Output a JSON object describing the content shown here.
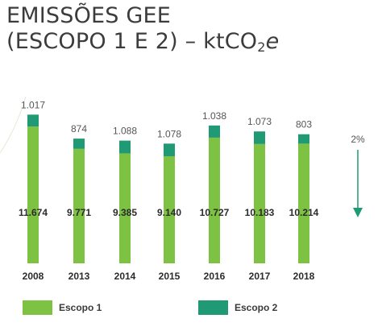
{
  "title": {
    "line1": "EMISSÕES GEE",
    "line2_prefix": "(ESCOPO 1 E 2) – ktCO",
    "line2_sub": "2",
    "line2_suffix": "e"
  },
  "colors": {
    "escopo1": "#7dc242",
    "escopo2": "#1f9a74",
    "title": "#3c3c3c",
    "arrow": "#1f9a74"
  },
  "chart_data": {
    "type": "bar",
    "stacked": true,
    "categories": [
      "2008",
      "2013",
      "2014",
      "2015",
      "2016",
      "2017",
      "2018"
    ],
    "series": [
      {
        "name": "Escopo 1",
        "values": [
          11674,
          9771,
          9385,
          9140,
          10727,
          10183,
          10214
        ],
        "labels": [
          "11.674",
          "9.771",
          "9.385",
          "9.140",
          "10.727",
          "10.183",
          "10.214"
        ]
      },
      {
        "name": "Escopo 2",
        "values": [
          1017,
          874,
          1088,
          1078,
          1038,
          1073,
          803
        ],
        "labels": [
          "1.017",
          "874",
          "1.088",
          "1.078",
          "1.038",
          "1.073",
          "803"
        ]
      }
    ],
    "trend": {
      "label": "2%",
      "direction": "down"
    },
    "legend_position": "bottom",
    "grid": false
  }
}
